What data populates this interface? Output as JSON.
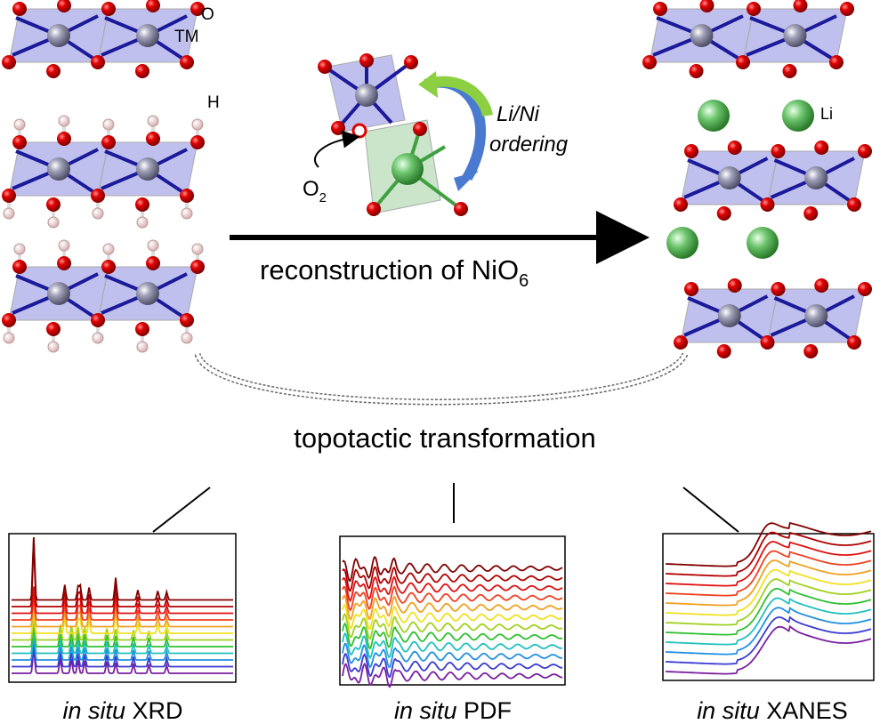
{
  "labels": {
    "oxygen": "O",
    "transition_metal": "TM",
    "hydrogen": "H",
    "lithium": "Li",
    "ordering_line1": "Li/Ni",
    "ordering_line2": "ordering",
    "o2_base": "O",
    "o2_sub": "2",
    "reconstruction_base": "reconstruction of NiO",
    "reconstruction_sub": "6",
    "topotactic": "topotactic transformation"
  },
  "panels": [
    {
      "prefix": "in situ",
      "technique": "XRD"
    },
    {
      "prefix": "in situ",
      "technique": "PDF"
    },
    {
      "prefix": "in situ",
      "technique": "XANES"
    }
  ],
  "colors": {
    "oxygen": "#e00000",
    "metal": "#8a8aa0",
    "bond": "#1a1a9a",
    "octahedron": "#8c8ce0",
    "lithium": "#6cc46c",
    "hydrogen": "#f2d8d8",
    "spectra": [
      "#7a1fa0",
      "#3a3ad0",
      "#2090e0",
      "#20c0c0",
      "#30c030",
      "#a0d020",
      "#f0e020",
      "#f0a020",
      "#f04020",
      "#e01010",
      "#b00000",
      "#800000"
    ]
  }
}
